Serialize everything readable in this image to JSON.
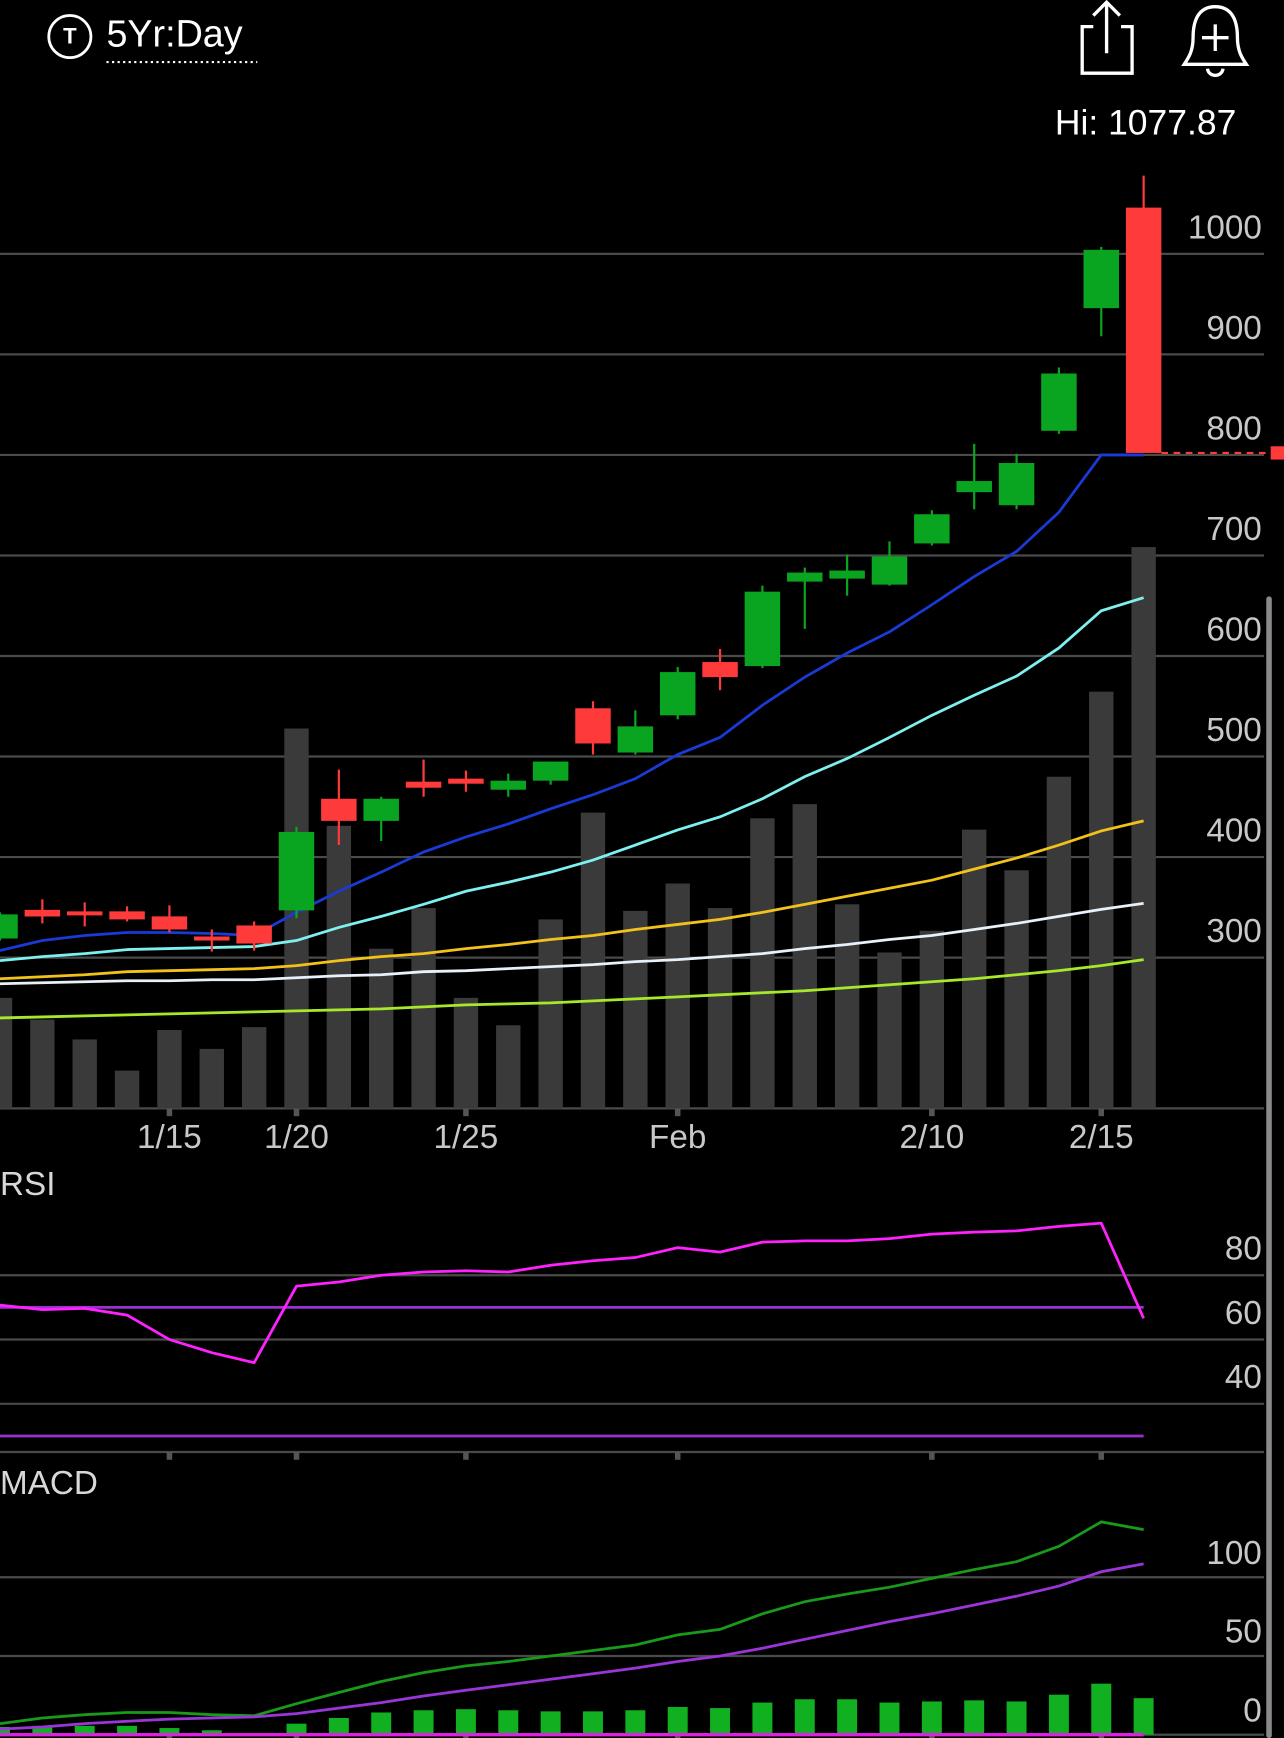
{
  "header": {
    "symbol_icon": "T",
    "timeframe": "5Yr:Day"
  },
  "chart_data": [
    {
      "type": "candlestick",
      "annotation": "Hi: 1077.87",
      "categories": [
        null,
        null,
        null,
        null,
        "1/15",
        null,
        null,
        "1/20",
        null,
        null,
        null,
        "1/25",
        null,
        null,
        null,
        null,
        "Feb",
        null,
        null,
        null,
        null,
        null,
        "2/10",
        null,
        null,
        null,
        "2/15",
        null
      ],
      "open": [
        319,
        347.5,
        346,
        346,
        341,
        321,
        332,
        347,
        458,
        436,
        475,
        478,
        467,
        476,
        548,
        504,
        541,
        594,
        590,
        674,
        677,
        671,
        712,
        763,
        750,
        824,
        946,
        1046
      ],
      "high": [
        345,
        358,
        355,
        351,
        352,
        328,
        336,
        430,
        487,
        460,
        497,
        486,
        483,
        495,
        555,
        546,
        589,
        607,
        670,
        688,
        701,
        714,
        745,
        811,
        801,
        887,
        1007,
        1077.87
      ],
      "low": [
        317,
        334,
        331,
        336,
        325,
        306,
        307,
        339,
        412,
        416,
        460,
        465,
        460,
        472,
        502,
        502,
        537,
        566,
        588,
        627,
        660,
        670,
        710,
        746,
        746,
        821,
        918,
        802
      ],
      "close": [
        343,
        340.9,
        342,
        338,
        328,
        317,
        314,
        425,
        436,
        458,
        469,
        473,
        476,
        495,
        513,
        530,
        584,
        579,
        664,
        683,
        685,
        699,
        741,
        774,
        792,
        881,
        1004,
        802
      ],
      "up_color": "#0aa520",
      "down_color": "#ff3a3a",
      "last_price_color": "#ff3a3a",
      "volume": {
        "color": "#3a3a3a",
        "ylim": [
          0,
          100
        ],
        "values": [
          11.7,
          9.4,
          7.3,
          4.0,
          8.3,
          6.3,
          8.6,
          40.2,
          29.9,
          16.9,
          21.2,
          11.7,
          8.8,
          20.0,
          31.3,
          20.9,
          23.8,
          21.2,
          30.7,
          32.2,
          21.6,
          16.5,
          18.8,
          29.5,
          25.2,
          35.1,
          44.1,
          59.4
        ]
      },
      "series": [
        {
          "color": "#1a3ad8",
          "values": [
            307,
            317,
            322,
            325,
            325,
            324,
            322,
            345,
            366,
            385,
            405,
            420,
            433,
            448,
            462,
            478,
            502,
            519,
            551,
            579,
            603,
            624,
            651,
            679,
            704,
            743,
            800,
            800
          ]
        },
        {
          "color": "#7ff0f0",
          "values": [
            297,
            301,
            304,
            308,
            309,
            310,
            311,
            317,
            330,
            341,
            353,
            366,
            375,
            385,
            397,
            412,
            427,
            440,
            458,
            480,
            498,
            519,
            541,
            561,
            580,
            608,
            645,
            658
          ]
        },
        {
          "color": "#f2c21b",
          "values": [
            279,
            281,
            283,
            286,
            287,
            288,
            289,
            292,
            297,
            301,
            304,
            309,
            313,
            318,
            322,
            328,
            333,
            338,
            345,
            353,
            361,
            369,
            377,
            388,
            399,
            412,
            426,
            436
          ]
        },
        {
          "color": "#e8f0f8",
          "values": [
            274,
            275,
            276,
            277,
            277,
            278,
            278,
            280,
            282,
            283,
            286,
            287,
            289,
            291,
            293,
            296,
            298,
            301,
            304,
            309,
            313,
            318,
            322,
            328,
            334,
            341,
            348,
            354
          ]
        },
        {
          "color": "#a8e82a",
          "values": [
            240,
            241,
            242,
            243,
            244,
            245,
            246,
            247,
            248,
            249,
            251,
            253,
            254,
            255,
            257,
            259,
            261,
            263,
            265,
            267,
            270,
            273,
            276,
            279,
            283,
            287,
            292,
            298
          ]
        }
      ],
      "ylim": [
        150,
        1090
      ],
      "yticks": [
        300,
        400,
        500,
        600,
        700,
        800,
        900,
        1000
      ],
      "grid": true
    },
    {
      "type": "line",
      "title": "RSI",
      "series": [
        {
          "color": "#ff22ff",
          "values": [
            70.7,
            69.3,
            69.7,
            67.6,
            60,
            55.9,
            52.8,
            76.6,
            77.9,
            80,
            81,
            81.4,
            81,
            83.1,
            84.5,
            85.5,
            88.6,
            87.2,
            90.3,
            90.7,
            90.7,
            91.4,
            92.8,
            93.4,
            93.8,
            95.2,
            96.2,
            66.6
          ]
        }
      ],
      "levels": [
        70,
        30
      ],
      "level_color": "#9a30d0",
      "ylim": [
        25,
        110
      ],
      "yticks": [
        40,
        60,
        80
      ],
      "grid": true
    },
    {
      "type": "line",
      "title": "MACD",
      "series": [
        {
          "color": "#1a9a1a",
          "values": [
            7,
            10.6,
            12.7,
            14.1,
            14.1,
            12.7,
            12,
            19.7,
            26.8,
            33.8,
            39.4,
            43.7,
            46.5,
            50,
            53.5,
            57,
            63.4,
            66.9,
            76.8,
            84.5,
            89.4,
            93.7,
            99.3,
            104.9,
            109.9,
            119.7,
            135.2,
            130.3
          ]
        },
        {
          "color": "#9a35d8",
          "values": [
            3.5,
            4.9,
            7,
            8.5,
            9.9,
            10.6,
            11.3,
            13.4,
            16.9,
            20.4,
            24.6,
            28.2,
            31.7,
            35.2,
            38.7,
            42.3,
            46.5,
            50,
            54.9,
            60.6,
            66.2,
            71.8,
            76.8,
            82.4,
            88,
            94.4,
            103.5,
            108.5
          ]
        }
      ],
      "histogram": {
        "color": "#10b020",
        "values": [
          4.9,
          5.6,
          5.6,
          5.6,
          4.2,
          2.8,
          0.7,
          7,
          10.6,
          14.1,
          15.5,
          16.2,
          15.5,
          14.8,
          14.8,
          15.5,
          17.6,
          16.9,
          20.4,
          22.5,
          22.5,
          20.4,
          21.1,
          21.8,
          21.1,
          25.4,
          32.4,
          23.2
        ]
      },
      "baseline_color": "#e020e0",
      "ylim": [
        0,
        170
      ],
      "yticks": [
        0,
        50,
        100
      ],
      "grid": true
    }
  ]
}
